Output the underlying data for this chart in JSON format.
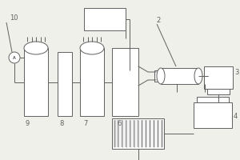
{
  "bg_color": "#f0f0eb",
  "line_color": "#606060",
  "lw": 0.7,
  "font_size": 6
}
